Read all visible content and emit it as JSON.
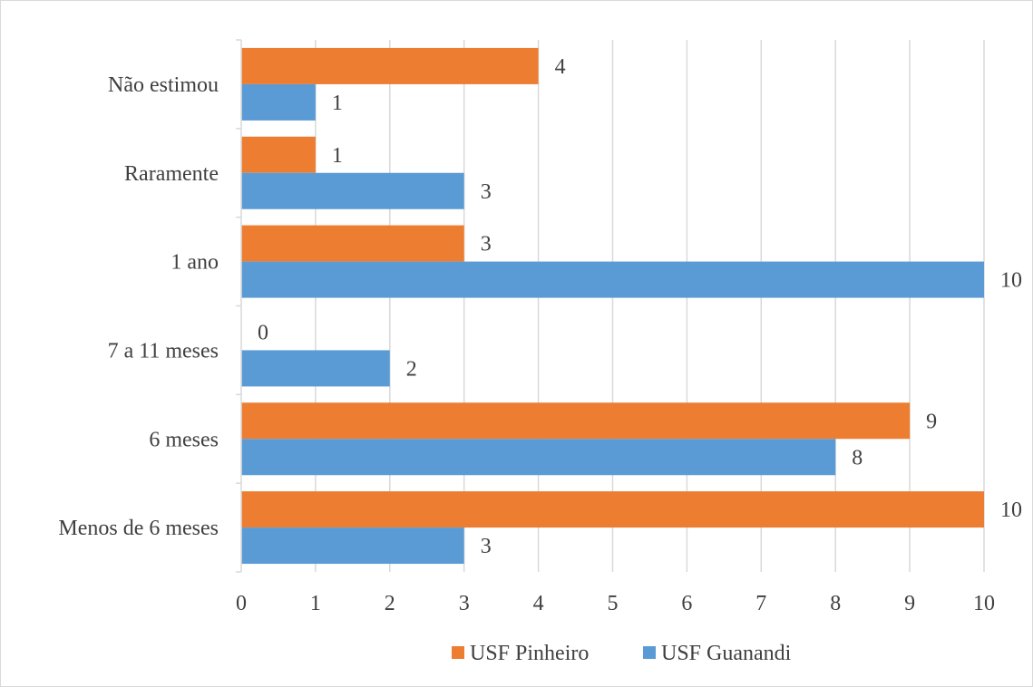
{
  "chart_data": {
    "type": "bar",
    "orientation": "horizontal",
    "categories": [
      "Menos de 6 meses",
      "6 meses",
      "7 a 11 meses",
      "1 ano",
      "Raramente",
      "Não estimou"
    ],
    "series": [
      {
        "name": "USF Pinheiro",
        "color": "#ED7D31",
        "values": [
          10,
          9,
          0,
          3,
          1,
          4
        ]
      },
      {
        "name": "USF Guanandi",
        "color": "#5B9BD5",
        "values": [
          3,
          8,
          2,
          10,
          3,
          1
        ]
      }
    ],
    "xlim": [
      0,
      10
    ],
    "xticks": [
      "0",
      "1",
      "2",
      "3",
      "4",
      "5",
      "6",
      "7",
      "8",
      "9",
      "10"
    ],
    "grid": "vertical",
    "legend_position": "bottom",
    "data_labels": true
  }
}
